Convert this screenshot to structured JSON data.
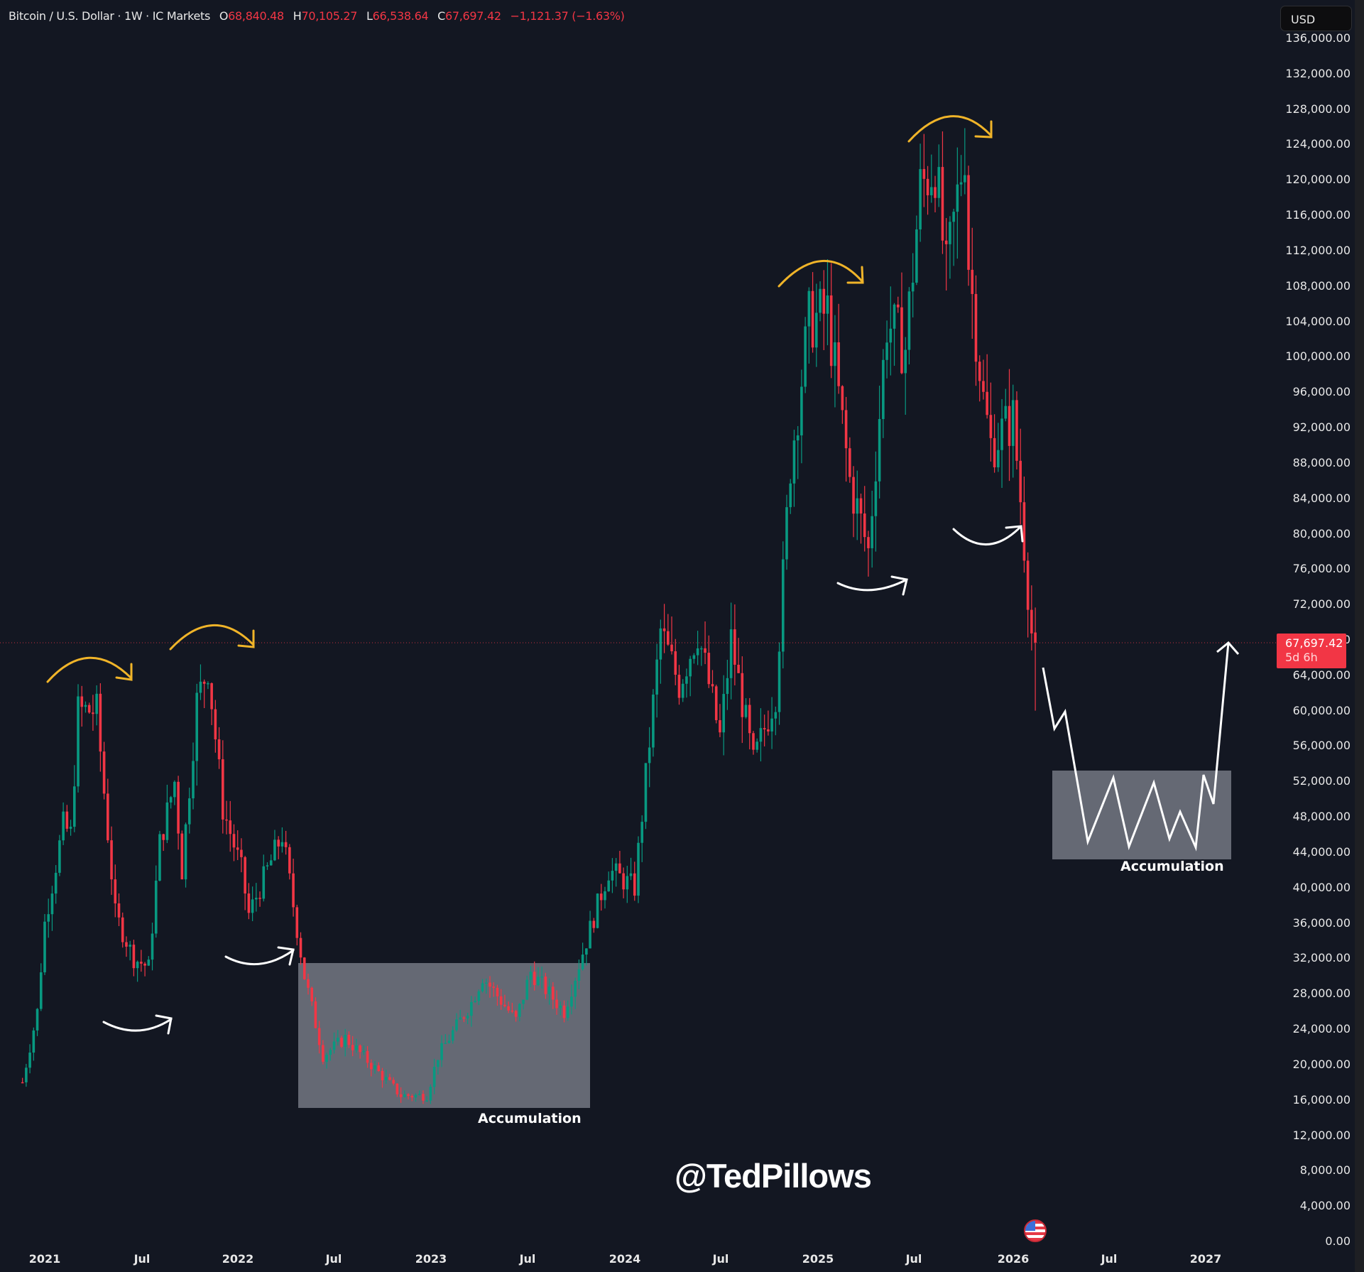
{
  "header": {
    "symbol": "Bitcoin / U.S. Dollar · 1W · IC Markets",
    "open_label": "O",
    "open": "68,840.48",
    "high_label": "H",
    "high": "70,105.27",
    "low_label": "L",
    "low": "66,538.64",
    "close_label": "C",
    "close": "67,697.42",
    "change": "−1,121.37 (−1.63%)"
  },
  "currency_button": "USD",
  "price_tag": {
    "price": "67,697.42",
    "countdown": "5d 6h"
  },
  "watermark": "@TedPillows",
  "annotations": {
    "accumulation_left": "Accumulation",
    "accumulation_right": "Accumulation"
  },
  "colors": {
    "background": "#131722",
    "up": "#089981",
    "down": "#f23645",
    "arrow_top": "#f0b429",
    "arrow_bottom": "#ffffff",
    "box_fill": "#787b86"
  },
  "chart_data": {
    "type": "candlestick",
    "title": "Bitcoin / U.S. Dollar · 1W · IC Markets",
    "xlabel": "",
    "ylabel": "USD",
    "ylim": [
      0,
      136000
    ],
    "y_ticks": [
      "136,000.00",
      "132,000.00",
      "128,000.00",
      "124,000.00",
      "120,000.00",
      "116,000.00",
      "112,000.00",
      "108,000.00",
      "104,000.00",
      "100,000.00",
      "96,000.00",
      "92,000.00",
      "88,000.00",
      "84,000.00",
      "80,000.00",
      "76,000.00",
      "72,000.00",
      "68,000.00",
      "64,000.00",
      "60,000.00",
      "56,000.00",
      "52,000.00",
      "48,000.00",
      "44,000.00",
      "40,000.00",
      "36,000.00",
      "32,000.00",
      "28,000.00",
      "24,000.00",
      "20,000.00",
      "16,000.00",
      "12,000.00",
      "8,000.00",
      "4,000.00",
      "0.00"
    ],
    "x_ticks": [
      "2021",
      "Jul",
      "2022",
      "Jul",
      "2023",
      "Jul",
      "2024",
      "Jul",
      "2025",
      "Jul",
      "2026",
      "Jul",
      "2027"
    ],
    "last_price": 67697.42,
    "ohlc_last": {
      "open": 68840.48,
      "high": 70105.27,
      "low": 66538.64,
      "close": 67697.42,
      "change": -1121.37,
      "change_pct": -1.63
    },
    "weekly_close_path": [
      [
        "2020-11-23",
        18000
      ],
      [
        "2020-12-21",
        26000
      ],
      [
        "2021-01-04",
        36000
      ],
      [
        "2021-02-08",
        47000
      ],
      [
        "2021-02-22",
        46000
      ],
      [
        "2021-03-08",
        60000
      ],
      [
        "2021-04-12",
        60000
      ],
      [
        "2021-05-17",
        37000
      ],
      [
        "2021-06-21",
        32000
      ],
      [
        "2021-07-19",
        31000
      ],
      [
        "2021-08-09",
        45000
      ],
      [
        "2021-09-06",
        52000
      ],
      [
        "2021-09-20",
        42000
      ],
      [
        "2021-10-18",
        61000
      ],
      [
        "2021-11-08",
        65000
      ],
      [
        "2021-12-06",
        49000
      ],
      [
        "2022-01-10",
        42000
      ],
      [
        "2022-01-24",
        37000
      ],
      [
        "2022-03-28",
        46000
      ],
      [
        "2022-05-09",
        30000
      ],
      [
        "2022-06-13",
        21000
      ],
      [
        "2022-07-25",
        23000
      ],
      [
        "2022-09-12",
        20000
      ],
      [
        "2022-11-07",
        16500
      ],
      [
        "2022-12-26",
        16500
      ],
      [
        "2023-01-16",
        21000
      ],
      [
        "2023-03-20",
        27000
      ],
      [
        "2023-04-10",
        30000
      ],
      [
        "2023-06-12",
        25000
      ],
      [
        "2023-07-10",
        30500
      ],
      [
        "2023-09-11",
        26000
      ],
      [
        "2023-10-23",
        34000
      ],
      [
        "2023-12-04",
        42000
      ],
      [
        "2024-01-22",
        40000
      ],
      [
        "2024-03-11",
        69000
      ],
      [
        "2024-04-15",
        63000
      ],
      [
        "2024-05-20",
        69000
      ],
      [
        "2024-07-01",
        57000
      ],
      [
        "2024-07-22",
        68000
      ],
      [
        "2024-09-02",
        54000
      ],
      [
        "2024-10-14",
        62000
      ],
      [
        "2024-11-11",
        88000
      ],
      [
        "2024-12-16",
        104000
      ],
      [
        "2025-01-20",
        105000
      ],
      [
        "2025-03-03",
        86000
      ],
      [
        "2025-04-07",
        78000
      ],
      [
        "2025-05-12",
        104000
      ],
      [
        "2025-06-16",
        101000
      ],
      [
        "2025-07-14",
        119000
      ],
      [
        "2025-08-11",
        122000
      ],
      [
        "2025-09-01",
        109000
      ],
      [
        "2025-10-06",
        124000
      ],
      [
        "2025-10-13",
        111000
      ],
      [
        "2025-11-10",
        95000
      ],
      [
        "2025-11-24",
        90000
      ],
      [
        "2026-01-05",
        93000
      ],
      [
        "2026-01-19",
        84000
      ],
      [
        "2026-02-09",
        68840
      ],
      [
        "2026-02-16",
        67697
      ]
    ],
    "annotations": [
      {
        "type": "arc_arrow",
        "color": "yellow",
        "label": "top 2021 Apr"
      },
      {
        "type": "arc_arrow",
        "color": "yellow",
        "label": "top 2021 Nov"
      },
      {
        "type": "arc_arrow",
        "color": "yellow",
        "label": "top 2024 Dec"
      },
      {
        "type": "arc_arrow",
        "color": "yellow",
        "label": "top 2025 Oct"
      },
      {
        "type": "arc_arrow",
        "color": "white",
        "label": "bounce 2021 Jul"
      },
      {
        "type": "arc_arrow",
        "color": "white",
        "label": "bounce 2022 Jan"
      },
      {
        "type": "arc_arrow",
        "color": "white",
        "label": "bounce 2025 Apr"
      },
      {
        "type": "arc_arrow",
        "color": "white",
        "label": "bounce 2025 Nov"
      },
      {
        "type": "rectangle",
        "label": "Accumulation",
        "x_range": [
          "2022-05",
          "2023-10"
        ],
        "y_range": [
          16000,
          31500
        ]
      },
      {
        "type": "rectangle",
        "label": "Accumulation",
        "x_range": [
          "2026-03",
          "2026-12"
        ],
        "y_range": [
          43500,
          53500
        ]
      },
      {
        "type": "projection_path",
        "label": "projected path",
        "points_usd": [
          64000,
          57000,
          59000,
          45000,
          52500,
          44500,
          52000,
          45500,
          48500,
          44500,
          52500,
          49500,
          67700
        ]
      }
    ]
  }
}
